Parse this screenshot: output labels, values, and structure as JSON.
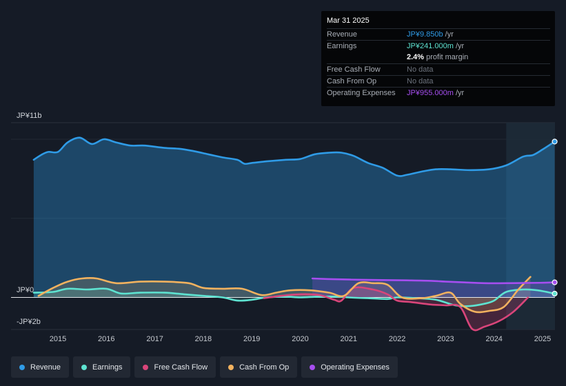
{
  "tooltip": {
    "date": "Mar 31 2025",
    "rows": [
      {
        "label": "Revenue",
        "value": "JP¥9.850b",
        "unit": " /yr",
        "color": "#2f9be6"
      },
      {
        "label": "Earnings",
        "value": "JP¥241.000m",
        "unit": " /yr",
        "color": "#5ee3d1"
      },
      {
        "label": "",
        "value": "2.4%",
        "unit": " profit margin",
        "color": "#ffffff"
      },
      {
        "label": "Free Cash Flow",
        "value": "No data",
        "unit": "",
        "color": "#6c727c"
      },
      {
        "label": "Cash From Op",
        "value": "No data",
        "unit": "",
        "color": "#6c727c"
      },
      {
        "label": "Operating Expenses",
        "value": "JP¥955.000m",
        "unit": " /yr",
        "color": "#a64ef0"
      }
    ]
  },
  "chart_data": {
    "type": "line",
    "title": "",
    "ylim": [
      -2,
      11
    ],
    "y_labels": {
      "top": "JP¥11b",
      "zero": "JP¥0",
      "bottom": "-JP¥2b"
    },
    "x_ticks": [
      {
        "label": "2015",
        "t": 2015.0
      },
      {
        "label": "2016",
        "t": 2016.0
      },
      {
        "label": "2017",
        "t": 2017.0
      },
      {
        "label": "2018",
        "t": 2018.0
      },
      {
        "label": "2019",
        "t": 2019.0
      },
      {
        "label": "2020",
        "t": 2020.0
      },
      {
        "label": "2021",
        "t": 2021.0
      },
      {
        "label": "2022",
        "t": 2022.0
      },
      {
        "label": "2023",
        "t": 2023.0
      },
      {
        "label": "2024",
        "t": 2024.0
      },
      {
        "label": "2025",
        "t": 2025.0
      }
    ],
    "highlight_from": 2024.25,
    "series": [
      {
        "name": "Revenue",
        "color": "#2f9be6",
        "area": true,
        "points": [
          [
            2014.5,
            8.7
          ],
          [
            2014.65,
            9.0
          ],
          [
            2014.8,
            9.2
          ],
          [
            2015.0,
            9.2
          ],
          [
            2015.2,
            9.8
          ],
          [
            2015.45,
            10.1
          ],
          [
            2015.7,
            9.7
          ],
          [
            2015.95,
            10.0
          ],
          [
            2016.2,
            9.8
          ],
          [
            2016.5,
            9.6
          ],
          [
            2016.8,
            9.6
          ],
          [
            2017.2,
            9.45
          ],
          [
            2017.5,
            9.4
          ],
          [
            2017.8,
            9.25
          ],
          [
            2018.1,
            9.05
          ],
          [
            2018.4,
            8.85
          ],
          [
            2018.7,
            8.7
          ],
          [
            2018.85,
            8.45
          ],
          [
            2019.0,
            8.5
          ],
          [
            2019.3,
            8.6
          ],
          [
            2019.7,
            8.7
          ],
          [
            2020.0,
            8.75
          ],
          [
            2020.3,
            9.05
          ],
          [
            2020.6,
            9.15
          ],
          [
            2020.85,
            9.15
          ],
          [
            2021.1,
            8.95
          ],
          [
            2021.4,
            8.5
          ],
          [
            2021.7,
            8.2
          ],
          [
            2022.0,
            7.7
          ],
          [
            2022.2,
            7.75
          ],
          [
            2022.5,
            7.95
          ],
          [
            2022.8,
            8.1
          ],
          [
            2023.1,
            8.1
          ],
          [
            2023.5,
            8.05
          ],
          [
            2023.9,
            8.1
          ],
          [
            2024.25,
            8.35
          ],
          [
            2024.6,
            8.9
          ],
          [
            2024.8,
            9.0
          ],
          [
            2025.0,
            9.35
          ],
          [
            2025.25,
            9.85
          ]
        ]
      },
      {
        "name": "Earnings",
        "color": "#5ee3d1",
        "area": true,
        "points": [
          [
            2014.5,
            0.3
          ],
          [
            2014.9,
            0.35
          ],
          [
            2015.2,
            0.55
          ],
          [
            2015.6,
            0.5
          ],
          [
            2016.0,
            0.55
          ],
          [
            2016.3,
            0.25
          ],
          [
            2016.7,
            0.3
          ],
          [
            2017.2,
            0.3
          ],
          [
            2017.6,
            0.2
          ],
          [
            2018.0,
            0.1
          ],
          [
            2018.4,
            0.0
          ],
          [
            2018.7,
            -0.2
          ],
          [
            2019.0,
            -0.15
          ],
          [
            2019.3,
            0.0
          ],
          [
            2019.7,
            0.05
          ],
          [
            2020.0,
            0.0
          ],
          [
            2020.4,
            0.05
          ],
          [
            2020.8,
            0.05
          ],
          [
            2021.0,
            0.0
          ],
          [
            2021.4,
            -0.05
          ],
          [
            2021.8,
            -0.1
          ],
          [
            2022.0,
            0.0
          ],
          [
            2022.4,
            -0.05
          ],
          [
            2022.8,
            -0.15
          ],
          [
            2023.2,
            -0.5
          ],
          [
            2023.5,
            -0.55
          ],
          [
            2023.8,
            -0.4
          ],
          [
            2024.0,
            -0.2
          ],
          [
            2024.25,
            0.35
          ],
          [
            2024.6,
            0.5
          ],
          [
            2024.9,
            0.45
          ],
          [
            2025.25,
            0.24
          ]
        ]
      },
      {
        "name": "Free Cash Flow",
        "color": "#d9457a",
        "area": true,
        "points": [
          [
            2019.25,
            -0.05
          ],
          [
            2019.6,
            0.1
          ],
          [
            2020.0,
            0.2
          ],
          [
            2020.4,
            0.15
          ],
          [
            2020.7,
            -0.15
          ],
          [
            2020.85,
            -0.2
          ],
          [
            2021.1,
            0.6
          ],
          [
            2021.5,
            0.5
          ],
          [
            2021.8,
            0.2
          ],
          [
            2022.0,
            -0.2
          ],
          [
            2022.3,
            -0.3
          ],
          [
            2022.7,
            -0.45
          ],
          [
            2023.0,
            -0.5
          ],
          [
            2023.3,
            -0.6
          ],
          [
            2023.55,
            -2.0
          ],
          [
            2023.8,
            -1.85
          ],
          [
            2024.1,
            -1.5
          ],
          [
            2024.4,
            -0.9
          ],
          [
            2024.7,
            0.0
          ]
        ]
      },
      {
        "name": "Cash From Op",
        "color": "#f2b25f",
        "area": true,
        "points": [
          [
            2014.6,
            0.1
          ],
          [
            2014.9,
            0.6
          ],
          [
            2015.2,
            1.0
          ],
          [
            2015.5,
            1.2
          ],
          [
            2015.8,
            1.2
          ],
          [
            2016.2,
            0.9
          ],
          [
            2016.7,
            1.0
          ],
          [
            2017.2,
            1.0
          ],
          [
            2017.7,
            0.9
          ],
          [
            2018.0,
            0.6
          ],
          [
            2018.4,
            0.55
          ],
          [
            2018.8,
            0.55
          ],
          [
            2019.2,
            0.15
          ],
          [
            2019.5,
            0.3
          ],
          [
            2019.8,
            0.45
          ],
          [
            2020.2,
            0.45
          ],
          [
            2020.6,
            0.3
          ],
          [
            2020.9,
            0.1
          ],
          [
            2021.2,
            0.9
          ],
          [
            2021.5,
            0.9
          ],
          [
            2021.8,
            0.8
          ],
          [
            2022.1,
            0.0
          ],
          [
            2022.5,
            -0.05
          ],
          [
            2022.8,
            0.1
          ],
          [
            2023.1,
            0.3
          ],
          [
            2023.3,
            -0.4
          ],
          [
            2023.6,
            -0.9
          ],
          [
            2023.9,
            -0.85
          ],
          [
            2024.2,
            -0.6
          ],
          [
            2024.5,
            0.5
          ],
          [
            2024.75,
            1.3
          ]
        ]
      },
      {
        "name": "Operating Expenses",
        "color": "#a64ef0",
        "area": true,
        "points": [
          [
            2020.25,
            1.2
          ],
          [
            2020.7,
            1.15
          ],
          [
            2021.2,
            1.12
          ],
          [
            2021.7,
            1.1
          ],
          [
            2022.2,
            1.08
          ],
          [
            2022.7,
            1.05
          ],
          [
            2023.0,
            1.0
          ],
          [
            2023.4,
            0.95
          ],
          [
            2023.8,
            0.9
          ],
          [
            2024.25,
            0.9
          ],
          [
            2024.7,
            0.92
          ],
          [
            2025.0,
            0.93
          ],
          [
            2025.25,
            0.955
          ]
        ]
      }
    ]
  },
  "legend": [
    {
      "label": "Revenue",
      "color": "#2f9be6"
    },
    {
      "label": "Earnings",
      "color": "#5ee3d1"
    },
    {
      "label": "Free Cash Flow",
      "color": "#d9457a"
    },
    {
      "label": "Cash From Op",
      "color": "#f2b25f"
    },
    {
      "label": "Operating Expenses",
      "color": "#a64ef0"
    }
  ]
}
